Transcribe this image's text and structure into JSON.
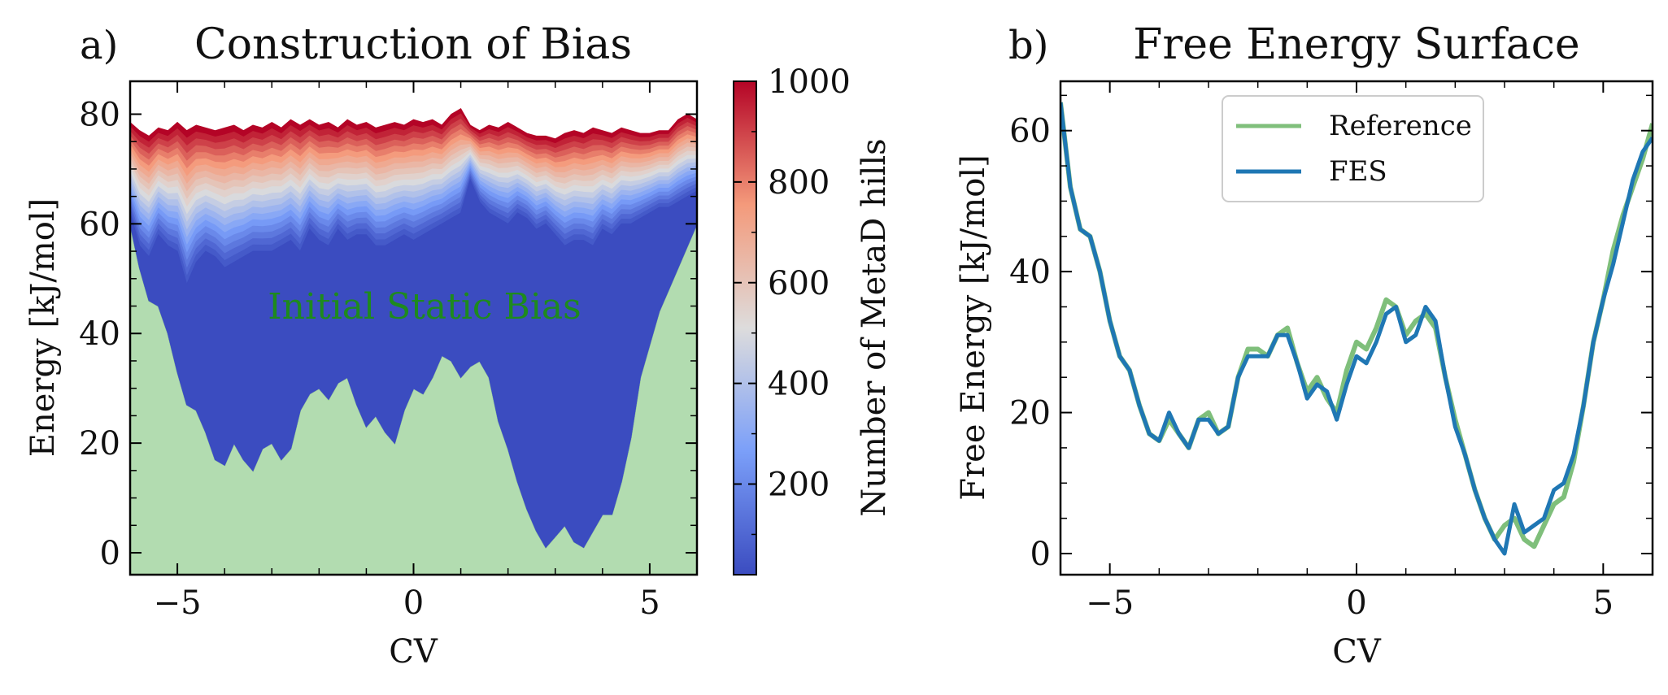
{
  "chart_data": [
    {
      "panel": "a)",
      "type": "area",
      "title": "Construction of Bias",
      "xlabel": "CV",
      "ylabel": "Energy [kJ/mol]",
      "xlim": [
        -6,
        6
      ],
      "ylim": [
        -4,
        86
      ],
      "xticks": [
        -5,
        0,
        5
      ],
      "xtick_labels": [
        "−5",
        "0",
        "5"
      ],
      "yticks": [
        0,
        20,
        40,
        60,
        80
      ],
      "grid": false,
      "annotation": "Initial Static Bias",
      "static_bias": {
        "x": [
          -6,
          -5.8,
          -5.6,
          -5.4,
          -5.2,
          -5.0,
          -4.8,
          -4.6,
          -4.4,
          -4.2,
          -4.0,
          -3.8,
          -3.6,
          -3.4,
          -3.2,
          -3.0,
          -2.8,
          -2.6,
          -2.4,
          -2.2,
          -2.0,
          -1.8,
          -1.6,
          -1.4,
          -1.2,
          -1.0,
          -0.8,
          -0.6,
          -0.4,
          -0.2,
          0.0,
          0.2,
          0.4,
          0.6,
          0.8,
          1.0,
          1.2,
          1.4,
          1.6,
          1.8,
          2.0,
          2.2,
          2.4,
          2.6,
          2.8,
          3.0,
          3.2,
          3.4,
          3.6,
          3.8,
          4.0,
          4.2,
          4.4,
          4.6,
          4.8,
          5.0,
          5.2,
          5.4,
          5.6,
          5.8,
          6.0
        ],
        "y": [
          60,
          52,
          46,
          45,
          40,
          33,
          27,
          26,
          22,
          17,
          16,
          20,
          17,
          15,
          19,
          20,
          17,
          19,
          26,
          29,
          30,
          28,
          31,
          32,
          27,
          23,
          25,
          22,
          20,
          26,
          30,
          29,
          32,
          36,
          35,
          32,
          34,
          35,
          32,
          24,
          19,
          13,
          8,
          4,
          1,
          3,
          5,
          2,
          1,
          4,
          7,
          7,
          13,
          21,
          32,
          38,
          44,
          48,
          52,
          56,
          60
        ]
      },
      "colorbar": {
        "label": "Number of MetaD hills",
        "range": [
          20,
          1000
        ],
        "ticks": [
          200,
          400,
          600,
          800,
          1000
        ],
        "colormap": "coolwarm"
      },
      "bias_layers": {
        "hills": [
          20,
          60,
          100,
          150,
          200,
          250,
          300,
          350,
          400,
          450,
          500,
          550,
          600,
          650,
          700,
          750,
          800,
          850,
          900,
          950,
          1000
        ],
        "top_curve": [
          78.5,
          77,
          76,
          77.5,
          77,
          78.5,
          77,
          78,
          77.5,
          77,
          77.5,
          78,
          77,
          78,
          77.5,
          78.5,
          77.5,
          79,
          78,
          79,
          78,
          78.5,
          77.5,
          79,
          78,
          78.5,
          77.5,
          78,
          78.5,
          78,
          79,
          78.5,
          79,
          78,
          80,
          81,
          78,
          77,
          78,
          77.5,
          78.5,
          77.5,
          76.5,
          76,
          76,
          75.5,
          76.5,
          77,
          76.5,
          77.5,
          77,
          76.5,
          77.5,
          77,
          76.5,
          76.5,
          77,
          77,
          79,
          80,
          79
        ],
        "base_curve": [
          62,
          56,
          54,
          58,
          56,
          55,
          49,
          53,
          55,
          54,
          52,
          53,
          54,
          55,
          55,
          55,
          56,
          57,
          55,
          59,
          57,
          56,
          59,
          57,
          58,
          58,
          56,
          56,
          57,
          58,
          57,
          58,
          59,
          60,
          61,
          62,
          68,
          64,
          62,
          61,
          60,
          62,
          61,
          59,
          60,
          58,
          56,
          57,
          57,
          56,
          59,
          58,
          60,
          60,
          61,
          62,
          63,
          63,
          64,
          65,
          66
        ]
      }
    },
    {
      "panel": "b)",
      "type": "line",
      "title": "Free Energy Surface",
      "xlabel": "CV",
      "ylabel": "Free Energy [kJ/mol]",
      "xlim": [
        -6,
        6
      ],
      "ylim": [
        -3,
        67
      ],
      "xticks": [
        -5,
        0,
        5
      ],
      "xtick_labels": [
        "−5",
        "0",
        "5"
      ],
      "yticks": [
        0,
        20,
        40,
        60
      ],
      "grid": false,
      "legend_position": "top-center",
      "x": [
        -6,
        -5.8,
        -5.6,
        -5.4,
        -5.2,
        -5.0,
        -4.8,
        -4.6,
        -4.4,
        -4.2,
        -4.0,
        -3.8,
        -3.6,
        -3.4,
        -3.2,
        -3.0,
        -2.8,
        -2.6,
        -2.4,
        -2.2,
        -2.0,
        -1.8,
        -1.6,
        -1.4,
        -1.2,
        -1.0,
        -0.8,
        -0.6,
        -0.4,
        -0.2,
        0.0,
        0.2,
        0.4,
        0.6,
        0.8,
        1.0,
        1.2,
        1.4,
        1.6,
        1.8,
        2.0,
        2.2,
        2.4,
        2.6,
        2.8,
        3.0,
        3.2,
        3.4,
        3.6,
        3.8,
        4.0,
        4.2,
        4.4,
        4.6,
        4.8,
        5.0,
        5.2,
        5.4,
        5.6,
        5.8,
        6.0
      ],
      "series": [
        {
          "name": "Reference",
          "color": "#7fbf7b",
          "values": [
            64,
            52,
            46,
            45,
            40,
            33,
            28,
            26,
            21,
            17,
            16,
            19,
            17,
            15,
            19,
            20,
            17,
            18,
            25,
            29,
            29,
            28,
            31,
            32,
            27,
            23,
            25,
            22,
            20,
            26,
            30,
            29,
            32,
            36,
            35,
            31,
            33,
            34,
            32,
            25,
            19,
            14,
            9,
            5,
            2,
            4,
            5,
            2,
            1,
            4,
            7,
            8,
            13,
            21,
            30,
            36,
            43,
            48,
            52,
            56,
            61
          ]
        },
        {
          "name": "FES",
          "color": "#1f77b4",
          "values": [
            64,
            52,
            46,
            45,
            40,
            33,
            28,
            26,
            21,
            17,
            16,
            20,
            17,
            15,
            19,
            19,
            17,
            18,
            25,
            28,
            28,
            28,
            31,
            31,
            27,
            22,
            24,
            23,
            19,
            24,
            28,
            27,
            30,
            34,
            35,
            30,
            31,
            35,
            33,
            25,
            18,
            14,
            9,
            5,
            2,
            0,
            7,
            3,
            4,
            5,
            9,
            10,
            14,
            21,
            30,
            36,
            41,
            47,
            53,
            57,
            59
          ]
        }
      ]
    }
  ]
}
